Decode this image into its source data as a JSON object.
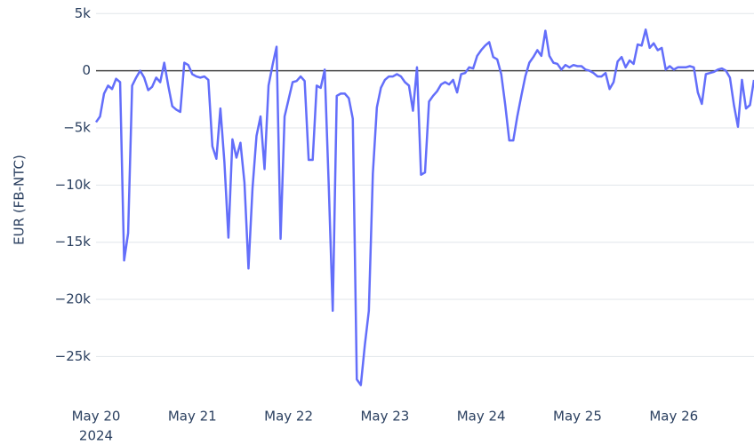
{
  "chart_data": {
    "type": "line",
    "y_label": "EUR (FB-NTC)",
    "x_year_label": "2024",
    "color": "#636efa",
    "grid": true,
    "zeroline": true,
    "xlim": [
      "2024-05-20T00:00",
      "2024-05-26T20:00"
    ],
    "xticks": [
      {
        "value": "2024-05-20T00:00",
        "label": "May 20"
      },
      {
        "value": "2024-05-21T00:00",
        "label": "May 21"
      },
      {
        "value": "2024-05-22T00:00",
        "label": "May 22"
      },
      {
        "value": "2024-05-23T00:00",
        "label": "May 23"
      },
      {
        "value": "2024-05-24T00:00",
        "label": "May 24"
      },
      {
        "value": "2024-05-25T00:00",
        "label": "May 25"
      },
      {
        "value": "2024-05-26T00:00",
        "label": "May 26"
      }
    ],
    "ylim": [
      -28000,
      5800
    ],
    "yticks": [
      {
        "value": 5000,
        "label": "5k"
      },
      0,
      {
        "value": -5000,
        "label": "−5k"
      },
      {
        "value": -10000,
        "label": "−10k"
      },
      {
        "value": -15000,
        "label": "−15k"
      },
      {
        "value": -20000,
        "label": "−20k"
      },
      {
        "value": -25000,
        "label": "−25k"
      }
    ],
    "x": [
      "2024-05-20T00:00",
      "2024-05-20T01:00",
      "2024-05-20T02:00",
      "2024-05-20T03:00",
      "2024-05-20T04:00",
      "2024-05-20T05:00",
      "2024-05-20T06:00",
      "2024-05-20T07:00",
      "2024-05-20T08:00",
      "2024-05-20T09:00",
      "2024-05-20T10:00",
      "2024-05-20T11:00",
      "2024-05-20T12:00",
      "2024-05-20T13:00",
      "2024-05-20T14:00",
      "2024-05-20T15:00",
      "2024-05-20T16:00",
      "2024-05-20T17:00",
      "2024-05-20T18:00",
      "2024-05-20T19:00",
      "2024-05-20T20:00",
      "2024-05-20T21:00",
      "2024-05-20T22:00",
      "2024-05-20T23:00",
      "2024-05-21T00:00",
      "2024-05-21T01:00",
      "2024-05-21T02:00",
      "2024-05-21T03:00",
      "2024-05-21T04:00",
      "2024-05-21T05:00",
      "2024-05-21T06:00",
      "2024-05-21T07:00",
      "2024-05-21T08:00",
      "2024-05-21T09:00",
      "2024-05-21T10:00",
      "2024-05-21T11:00",
      "2024-05-21T12:00",
      "2024-05-21T13:00",
      "2024-05-21T14:00",
      "2024-05-21T15:00",
      "2024-05-21T16:00",
      "2024-05-21T17:00",
      "2024-05-21T18:00",
      "2024-05-21T19:00",
      "2024-05-21T20:00",
      "2024-05-21T21:00",
      "2024-05-21T22:00",
      "2024-05-21T23:00",
      "2024-05-22T00:00",
      "2024-05-22T01:00",
      "2024-05-22T02:00",
      "2024-05-22T03:00",
      "2024-05-22T04:00",
      "2024-05-22T05:00",
      "2024-05-22T06:00",
      "2024-05-22T07:00",
      "2024-05-22T08:00",
      "2024-05-22T09:00",
      "2024-05-22T10:00",
      "2024-05-22T11:00",
      "2024-05-22T12:00",
      "2024-05-22T13:00",
      "2024-05-22T14:00",
      "2024-05-22T15:00",
      "2024-05-22T16:00",
      "2024-05-22T17:00",
      "2024-05-22T18:00",
      "2024-05-22T19:00",
      "2024-05-22T20:00",
      "2024-05-22T21:00",
      "2024-05-22T22:00",
      "2024-05-22T23:00",
      "2024-05-23T00:00",
      "2024-05-23T01:00",
      "2024-05-23T02:00",
      "2024-05-23T03:00",
      "2024-05-23T04:00",
      "2024-05-23T05:00",
      "2024-05-23T06:00",
      "2024-05-23T07:00",
      "2024-05-23T08:00",
      "2024-05-23T09:00",
      "2024-05-23T10:00",
      "2024-05-23T11:00",
      "2024-05-23T12:00",
      "2024-05-23T13:00",
      "2024-05-23T14:00",
      "2024-05-23T15:00",
      "2024-05-23T16:00",
      "2024-05-23T17:00",
      "2024-05-23T18:00",
      "2024-05-23T19:00",
      "2024-05-23T20:00",
      "2024-05-23T21:00",
      "2024-05-23T22:00",
      "2024-05-23T23:00",
      "2024-05-24T00:00",
      "2024-05-24T01:00",
      "2024-05-24T02:00",
      "2024-05-24T03:00",
      "2024-05-24T04:00",
      "2024-05-24T05:00",
      "2024-05-24T06:00",
      "2024-05-24T07:00",
      "2024-05-24T08:00",
      "2024-05-24T09:00",
      "2024-05-24T10:00",
      "2024-05-24T11:00",
      "2024-05-24T12:00",
      "2024-05-24T13:00",
      "2024-05-24T14:00",
      "2024-05-24T15:00",
      "2024-05-24T16:00",
      "2024-05-24T17:00",
      "2024-05-24T18:00",
      "2024-05-24T19:00",
      "2024-05-24T20:00",
      "2024-05-24T21:00",
      "2024-05-24T22:00",
      "2024-05-24T23:00",
      "2024-05-25T00:00",
      "2024-05-25T01:00",
      "2024-05-25T02:00",
      "2024-05-25T03:00",
      "2024-05-25T04:00",
      "2024-05-25T05:00",
      "2024-05-25T06:00",
      "2024-05-25T07:00",
      "2024-05-25T08:00",
      "2024-05-25T09:00",
      "2024-05-25T10:00",
      "2024-05-25T11:00",
      "2024-05-25T12:00",
      "2024-05-25T13:00",
      "2024-05-25T14:00",
      "2024-05-25T15:00",
      "2024-05-25T16:00",
      "2024-05-25T17:00",
      "2024-05-25T18:00",
      "2024-05-25T19:00",
      "2024-05-25T20:00",
      "2024-05-25T21:00",
      "2024-05-25T22:00",
      "2024-05-25T23:00",
      "2024-05-26T00:00",
      "2024-05-26T01:00",
      "2024-05-26T02:00",
      "2024-05-26T03:00",
      "2024-05-26T04:00",
      "2024-05-26T05:00",
      "2024-05-26T06:00",
      "2024-05-26T07:00",
      "2024-05-26T08:00",
      "2024-05-26T09:00",
      "2024-05-26T10:00",
      "2024-05-26T11:00",
      "2024-05-26T12:00",
      "2024-05-26T13:00",
      "2024-05-26T14:00",
      "2024-05-26T15:00",
      "2024-05-26T16:00",
      "2024-05-26T17:00",
      "2024-05-26T18:00",
      "2024-05-26T19:00",
      "2024-05-26T20:00"
    ],
    "values": [
      -4500,
      -4000,
      -2000,
      -1300,
      -1600,
      -700,
      -1000,
      -16600,
      -14200,
      -1300,
      -600,
      0,
      -600,
      -1700,
      -1400,
      -600,
      -1000,
      700,
      -1300,
      -3100,
      -3400,
      -3600,
      700,
      500,
      -300,
      -500,
      -600,
      -500,
      -800,
      -6600,
      -7700,
      -3300,
      -8000,
      -14600,
      -6000,
      -7600,
      -6300,
      -9800,
      -17300,
      -10300,
      -5700,
      -4000,
      -8600,
      -1300,
      500,
      2100,
      -14700,
      -4000,
      -2500,
      -1000,
      -900,
      -500,
      -900,
      -7800,
      -7800,
      -1300,
      -1500,
      100,
      -10000,
      -21000,
      -2200,
      -2000,
      -2000,
      -2400,
      -4200,
      -27000,
      -27500,
      -24000,
      -21000,
      -9000,
      -3200,
      -1500,
      -800,
      -500,
      -500,
      -300,
      -500,
      -1000,
      -1300,
      -3500,
      300,
      -9100,
      -8900,
      -2700,
      -2200,
      -1800,
      -1200,
      -1000,
      -1200,
      -800,
      -1900,
      -300,
      -200,
      300,
      200,
      1300,
      1800,
      2200,
      2500,
      1200,
      1000,
      -300,
      -3000,
      -6100,
      -6100,
      -4000,
      -2200,
      -500,
      700,
      1200,
      1800,
      1300,
      3500,
      1300,
      700,
      600,
      100,
      500,
      300,
      500,
      400,
      400,
      100,
      0,
      -200,
      -500,
      -500,
      -200,
      -1600,
      -1000,
      800,
      1200,
      300,
      900,
      600,
      2300,
      2200,
      3600,
      2000,
      2400,
      1800,
      2000,
      100,
      400,
      100,
      300,
      300,
      300,
      400,
      300,
      -1900,
      -2900,
      -300,
      -200,
      -100,
      100,
      200,
      0,
      -600,
      -3000,
      -4900,
      -800,
      -3300,
      -3000,
      -800
    ]
  }
}
